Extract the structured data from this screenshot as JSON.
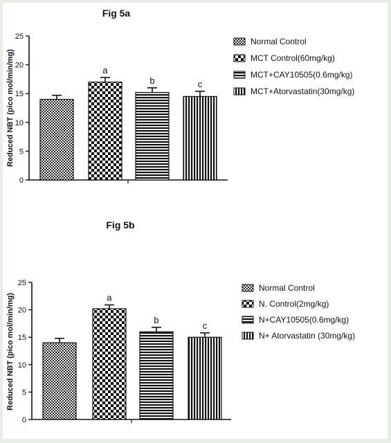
{
  "chart_data": [
    {
      "type": "bar",
      "title": "Fig 5a",
      "ylabel": "Reduced NBT (pico mol/min/mg)",
      "xlabel": "",
      "ylim": [
        0,
        25
      ],
      "yticks": [
        0,
        5,
        10,
        15,
        20,
        25
      ],
      "categories": [
        "Normal Control",
        "MCT Control(60mg/kg)",
        "MCT+CAY10505(0.6mg/kg)",
        "MCT+Atorvastatin(30mg/kg)"
      ],
      "values": [
        14.0,
        17.0,
        15.2,
        14.5
      ],
      "errors": [
        0.7,
        0.8,
        0.8,
        0.9
      ],
      "significance": [
        "",
        "a",
        "b",
        "c"
      ],
      "patterns": [
        "checker-fine",
        "checker-coarse",
        "horizontal",
        "vertical"
      ],
      "legend": [
        "Normal Control",
        "MCT Control(60mg/kg)",
        "MCT+CAY10505(0.6mg/kg)",
        "MCT+Atorvastatin(30mg/kg)"
      ],
      "legend_position": "right",
      "grid": false
    },
    {
      "type": "bar",
      "title": "Fig 5b",
      "ylabel": "Reduced NBT (pico mol/min/mg)",
      "xlabel": "",
      "ylim": [
        0,
        25
      ],
      "yticks": [
        0,
        5,
        10,
        15,
        20,
        25
      ],
      "categories": [
        "Normal Control",
        "N. Control(2mg/kg)",
        "N+CAY10505(0.6mg/kg)",
        "N+ Atorvastatin (30mg/kg)"
      ],
      "values": [
        14.0,
        20.2,
        16.0,
        15.0
      ],
      "errors": [
        0.8,
        0.7,
        0.8,
        0.8
      ],
      "significance": [
        "",
        "a",
        "b",
        "c"
      ],
      "patterns": [
        "checker-fine",
        "checker-coarse",
        "horizontal",
        "vertical"
      ],
      "legend": [
        "Normal Control",
        "N. Control(2mg/kg)",
        "N+CAY10505(0.6mg/kg)",
        "N+ Atorvastatin (30mg/kg)"
      ],
      "legend_position": "right",
      "grid": false
    }
  ],
  "colors": {
    "ink": "#111111",
    "page": "#ffffff",
    "border": "#e8eee6"
  }
}
